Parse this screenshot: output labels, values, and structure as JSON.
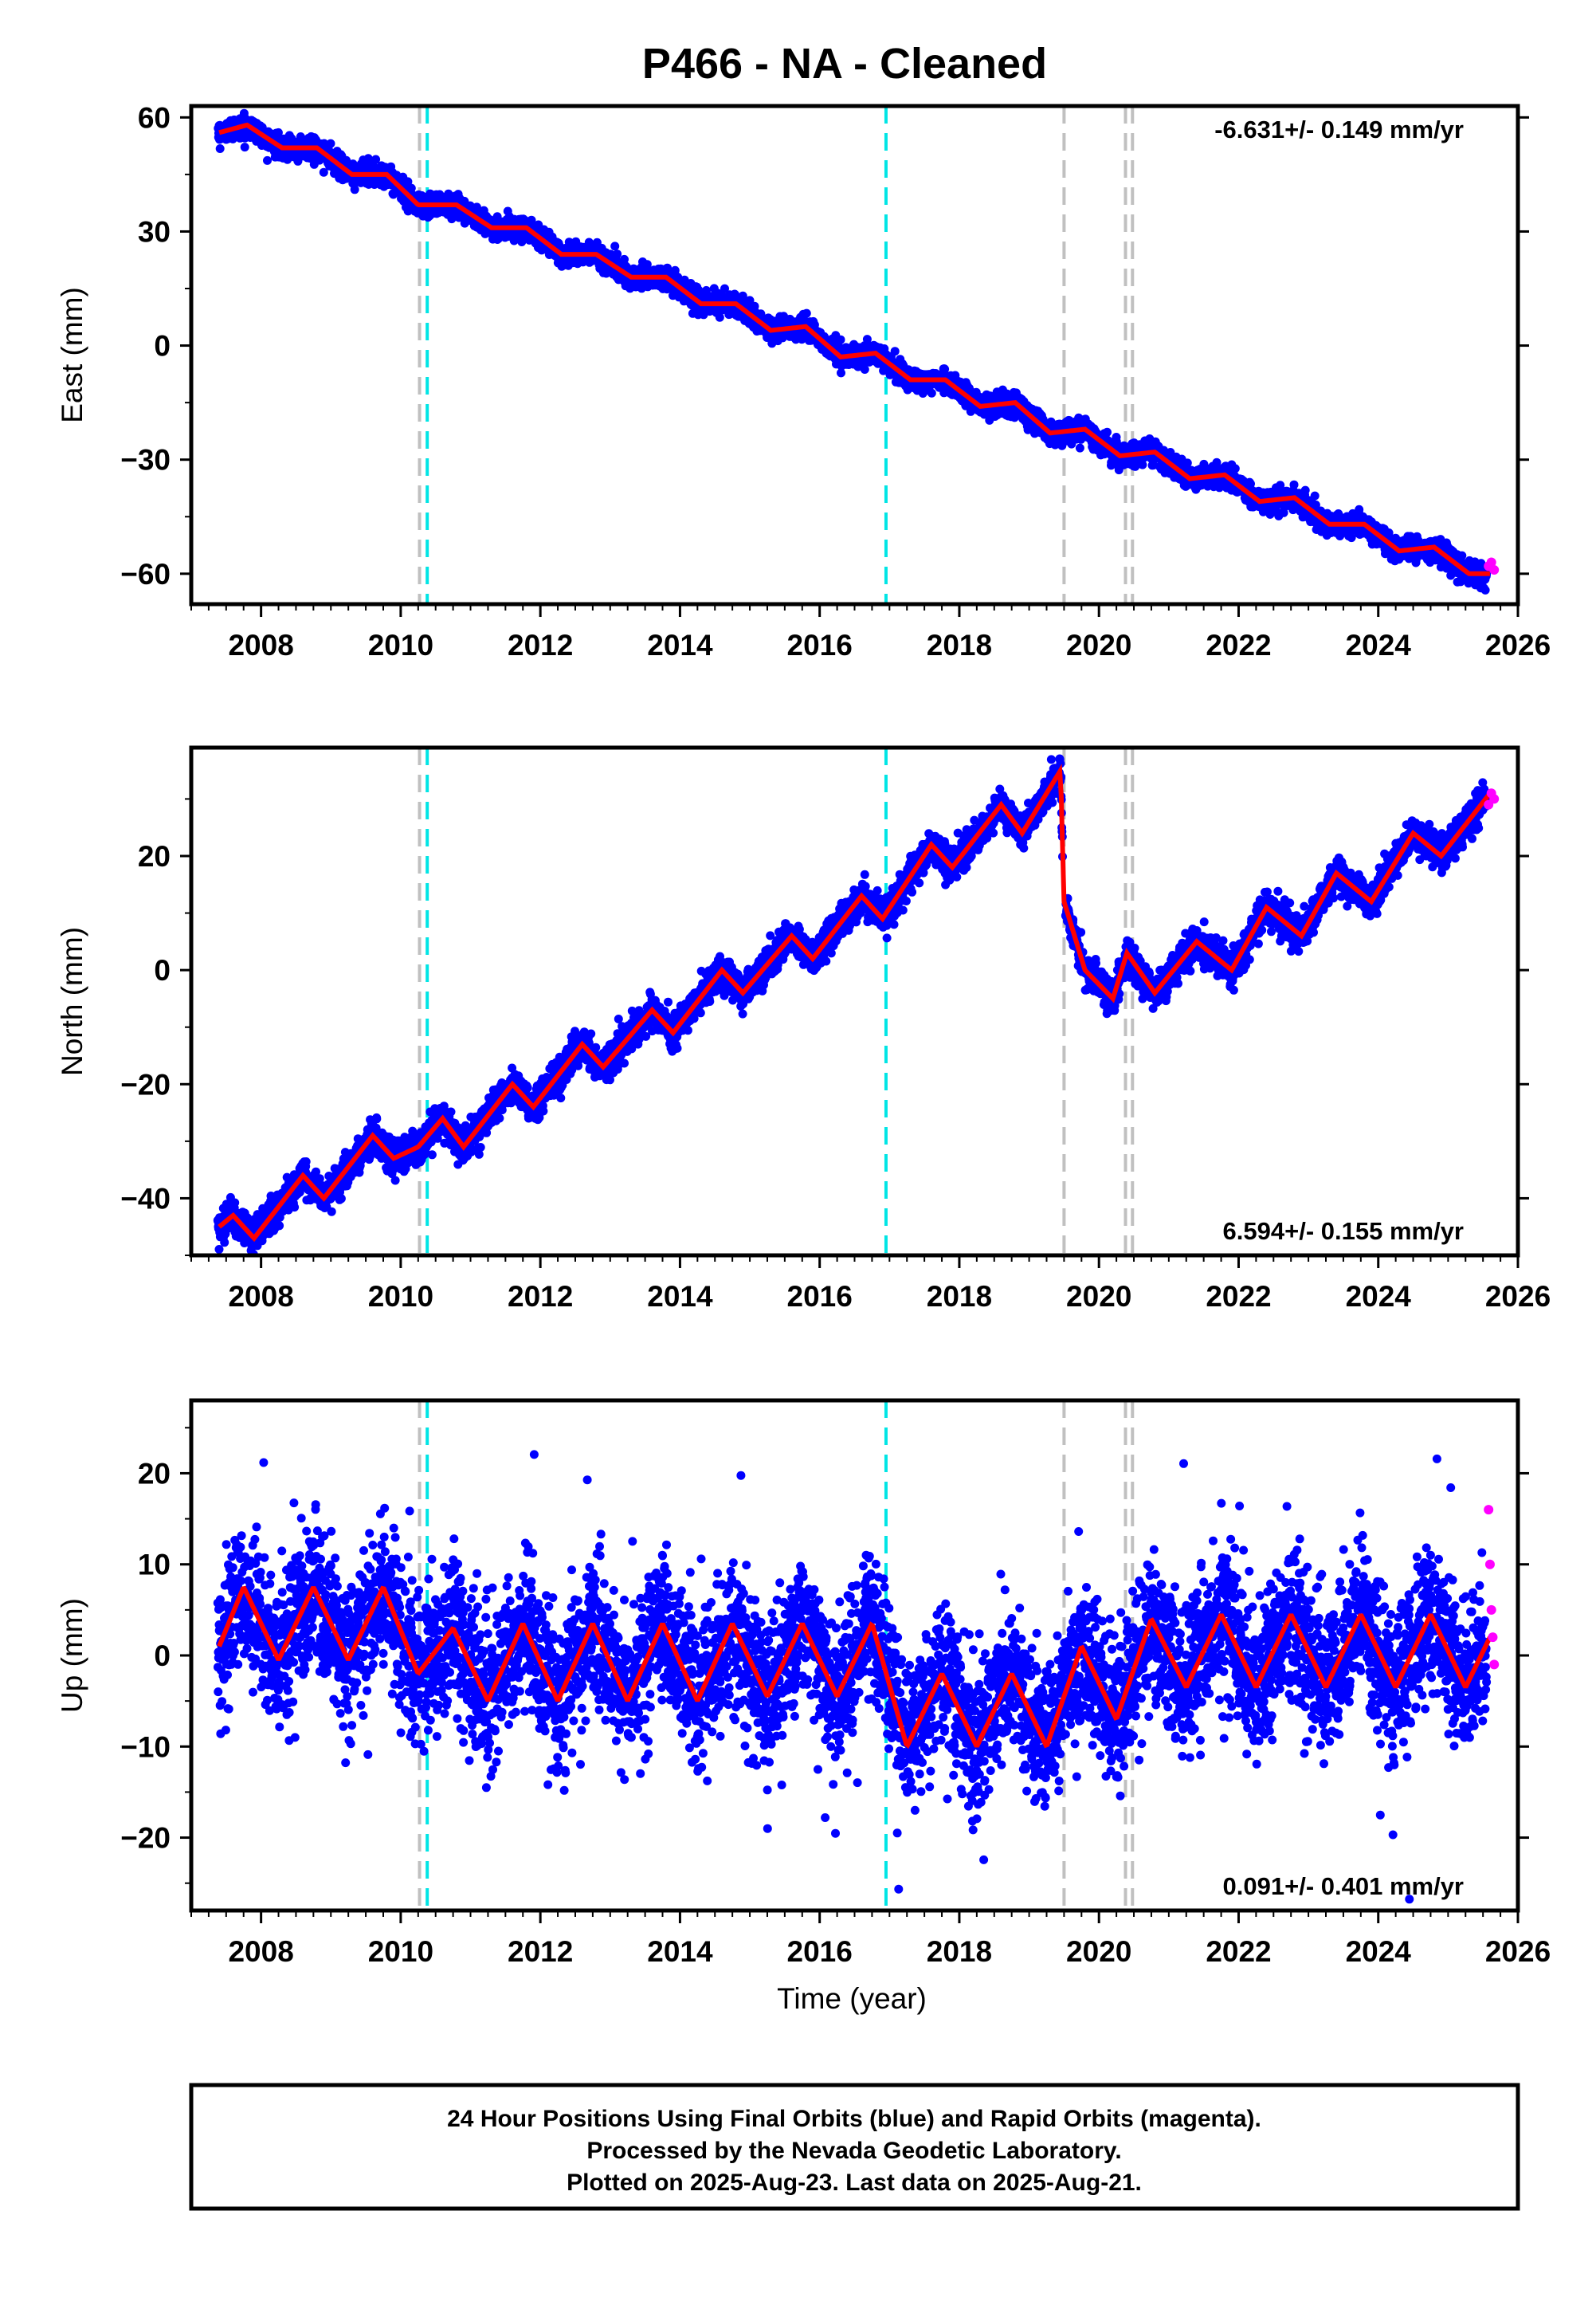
{
  "title": "P466  - NA - Cleaned",
  "colors": {
    "final": "#0000ff",
    "rapid": "#ff00ff",
    "model": "#ff0000",
    "equipment_change": "#00e5e5",
    "earthquake": "#c0c0c0"
  },
  "chart_data": [
    {
      "type": "scatter",
      "component": "east",
      "ylabel": "East (mm)",
      "xlabel": "",
      "xlim": [
        2007.0,
        2026.0
      ],
      "ylim": [
        -68,
        63
      ],
      "yticks": [
        60,
        30,
        0,
        -30,
        -60
      ],
      "xticks": [
        2008,
        2010,
        2012,
        2014,
        2016,
        2018,
        2020,
        2022,
        2024,
        2026
      ],
      "rate_label": "-6.631+/- 0.149 mm/yr",
      "rate_position": "top-right",
      "velocity_mm_per_yr": -6.631,
      "series_model": {
        "x": [
          2007.4,
          2007.8,
          2008.3,
          2008.8,
          2009.3,
          2009.8,
          2010.25,
          2010.4,
          2010.8,
          2011.3,
          2011.8,
          2012.3,
          2012.8,
          2013.3,
          2013.8,
          2014.3,
          2014.8,
          2015.3,
          2015.8,
          2016.3,
          2016.8,
          2017.3,
          2017.8,
          2018.3,
          2018.8,
          2019.3,
          2019.8,
          2020.3,
          2020.8,
          2021.3,
          2021.8,
          2022.3,
          2022.8,
          2023.3,
          2023.8,
          2024.3,
          2024.8,
          2025.3,
          2025.6
        ],
        "y": [
          56,
          58,
          52,
          52,
          45,
          45,
          37,
          37,
          37,
          31,
          31,
          24,
          24,
          18,
          18,
          11,
          11,
          4,
          5,
          -3,
          -2,
          -9,
          -9,
          -16,
          -15,
          -23,
          -22,
          -29,
          -28,
          -35,
          -34,
          -41,
          -40,
          -47,
          -47,
          -54,
          -53,
          -60,
          -60
        ]
      },
      "rapid_points": {
        "x": [
          2025.58,
          2025.62,
          2025.66
        ],
        "y": [
          -58,
          -57,
          -59
        ]
      }
    },
    {
      "type": "scatter",
      "component": "north",
      "ylabel": "North (mm)",
      "xlabel": "",
      "xlim": [
        2007.0,
        2026.0
      ],
      "ylim": [
        -50,
        39
      ],
      "yticks": [
        20,
        0,
        -20,
        -40
      ],
      "xticks": [
        2008,
        2010,
        2012,
        2014,
        2016,
        2018,
        2020,
        2022,
        2024,
        2026
      ],
      "rate_label": "6.594+/- 0.155 mm/yr",
      "rate_position": "bottom-right",
      "velocity_mm_per_yr": 6.594,
      "series_model": {
        "x": [
          2007.4,
          2007.6,
          2007.9,
          2008.6,
          2008.9,
          2009.6,
          2009.9,
          2010.25,
          2010.6,
          2010.9,
          2011.6,
          2011.9,
          2012.6,
          2012.9,
          2013.6,
          2013.9,
          2014.6,
          2014.9,
          2015.6,
          2015.9,
          2016.6,
          2016.9,
          2017.6,
          2017.9,
          2018.6,
          2018.9,
          2019.45,
          2019.5,
          2019.8,
          2020.2,
          2020.4,
          2020.8,
          2021.4,
          2021.9,
          2022.4,
          2022.9,
          2023.4,
          2023.9,
          2024.5,
          2024.9,
          2025.6
        ],
        "y": [
          -45,
          -43,
          -47,
          -36,
          -40,
          -29,
          -33,
          -31,
          -26,
          -31,
          -20,
          -24,
          -13,
          -17,
          -7,
          -11,
          0,
          -4,
          6,
          2,
          13,
          9,
          22,
          18,
          29,
          24,
          35,
          12,
          0,
          -5,
          3,
          -4,
          5,
          0,
          11,
          6,
          17,
          12,
          24,
          20,
          31
        ]
      },
      "offsets": [
        {
          "x": 2019.5,
          "from": 35,
          "to": 12
        }
      ],
      "rapid_points": {
        "x": [
          2025.58,
          2025.62,
          2025.66
        ],
        "y": [
          29,
          31,
          30
        ]
      }
    },
    {
      "type": "scatter",
      "component": "up",
      "ylabel": "Up (mm)",
      "xlabel": "Time (year)",
      "xlim": [
        2007.0,
        2026.0
      ],
      "ylim": [
        -28,
        28
      ],
      "yticks": [
        20,
        10,
        0,
        -10,
        -20
      ],
      "xticks": [
        2008,
        2010,
        2012,
        2014,
        2016,
        2018,
        2020,
        2022,
        2024,
        2026
      ],
      "rate_label": "0.091+/- 0.401 mm/yr",
      "rate_position": "bottom-right",
      "velocity_mm_per_yr": 0.091,
      "seasonal_amplitude_mm": 4.2,
      "series_model": {
        "x": [
          2007.4,
          2007.75,
          2008.25,
          2008.75,
          2009.25,
          2009.75,
          2010.25,
          2010.75,
          2011.25,
          2011.75,
          2012.25,
          2012.75,
          2013.25,
          2013.75,
          2014.25,
          2014.75,
          2015.25,
          2015.75,
          2016.25,
          2016.75,
          2017.25,
          2017.75,
          2018.25,
          2018.75,
          2019.25,
          2019.75,
          2020.25,
          2020.75,
          2021.25,
          2021.75,
          2022.25,
          2022.75,
          2023.25,
          2023.75,
          2024.25,
          2024.75,
          2025.25,
          2025.6
        ],
        "y": [
          1,
          7.5,
          -0.5,
          7.5,
          -0.5,
          7.5,
          -2,
          3,
          -5,
          3.5,
          -5,
          3.5,
          -5,
          3.5,
          -5,
          3.5,
          -4.5,
          3.5,
          -4.5,
          3.5,
          -10,
          -2,
          -10,
          -2,
          -10,
          1,
          -7,
          4,
          -3.5,
          4.5,
          -3.5,
          4.5,
          -3.5,
          4.5,
          -3.5,
          4.5,
          -3.5,
          2
        ]
      },
      "rapid_points": {
        "x": [
          2025.58,
          2025.6,
          2025.62,
          2025.64,
          2025.66
        ],
        "y": [
          16,
          10,
          5,
          2,
          -1
        ]
      }
    }
  ],
  "events": {
    "equipment_changes": [
      2010.38,
      2016.95
    ],
    "earthquakes": [
      2010.27,
      2019.5,
      2020.38,
      2020.48
    ]
  },
  "footer": {
    "line1": "24 Hour Positions Using Final Orbits (blue) and Rapid Orbits (magenta).",
    "line2": "Processed by the Nevada Geodetic Laboratory.",
    "line3": "Plotted on 2025-Aug-23. Last data on 2025-Aug-21."
  }
}
